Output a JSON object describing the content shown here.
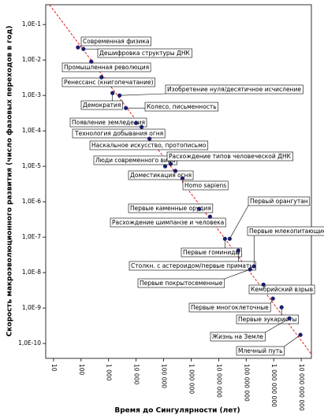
{
  "chart_data": {
    "type": "scatter",
    "y_label": "Скорость макроэволюционного развития (число фазовых переходов в год)",
    "x_label": "Время до Сингулярности (лет)",
    "x_scale": "log",
    "y_scale": "log",
    "color": "#1c1c6b",
    "x": [
      77,
      122,
      235,
      553,
      1390,
      2510,
      4250,
      10000,
      15800,
      30600,
      114000,
      181000,
      268000,
      485000,
      1930000,
      4850000,
      16900000,
      25100000,
      51800000,
      139000000,
      193000000,
      425000000,
      936000000,
      1930000000,
      3730000000,
      9360000000
    ],
    "values": [
      0.0227,
      0.0205,
      0.00903,
      0.00325,
      0.00117,
      0.001,
      0.00044,
      0.000167,
      0.000129,
      6e-05,
      1e-05,
      1.17e-05,
      7.4e-06,
      4.6e-06,
      6.3e-07,
      3.8e-07,
      9e-08,
      9e-08,
      4.2e-08,
      1.23e-08,
      1.5e-08,
      4.6e-09,
      1.85e-09,
      1.05e-09,
      5.1e-10,
      1.75e-10
    ],
    "labels": [
      "Современная физика",
      "Дешифровка структуры ДНК",
      "Промышленная революция",
      "Ренессанс (книгопечатание)",
      "Демократия",
      "Изобретение нуля/десятичное исчисление",
      "Колесо, письменность",
      "Появление земледелия",
      "Технология добывания огня",
      "Наскальное искусство, протописьмо",
      "Люди современного вида",
      "Расхождение типов человеческой ДНК",
      "Доместикация огня",
      "Homo sapiens",
      "Первые каменные орудия",
      "Расхождение шимпанзе и человека",
      "Первые гоминиды",
      "Первый орангутан",
      "Столкн. с астероидом/первые приматы",
      "Первые покрытосеменные",
      "Первые млекопитающие",
      "Кембрийский взрыв",
      "Первые многоклеточные",
      "Первые эукариоты",
      "Жизнь на Земле",
      "Млечный путь"
    ],
    "trendline": {
      "color": "#e31a1c",
      "x": [
        7.2,
        30600000000
      ],
      "y": [
        0.36,
        3.8e-11
      ]
    },
    "xlim": [
      5.2,
      23400000000
    ],
    "ylim": [
      3.8e-11,
      0.363
    ],
    "xticks": [
      10,
      100,
      {
        "value": 1000,
        "label": "1 000"
      },
      {
        "value": 10000,
        "label": "10 000"
      },
      {
        "value": 100000,
        "label": "100 000"
      },
      {
        "value": 1000000,
        "label": "1 000 000"
      },
      {
        "value": 10000000,
        "label": "10 000 000"
      },
      {
        "value": 100000000,
        "label": "100 000 000"
      },
      {
        "value": 1000000000,
        "label": "1 000 000 000"
      },
      {
        "value": 10000000000,
        "label": "10 000 000 000"
      }
    ],
    "yticks": [
      {
        "value": 0.1,
        "label": "1,0E-1"
      },
      {
        "value": 0.01,
        "label": "1,0E-2"
      },
      {
        "value": 0.001,
        "label": "1,0E-3"
      },
      {
        "value": 0.0001,
        "label": "1,0E-4"
      },
      {
        "value": 1e-05,
        "label": "1,0E-5"
      },
      {
        "value": 1e-06,
        "label": "1,0E-6"
      },
      {
        "value": 1e-07,
        "label": "1,0E-7"
      },
      {
        "value": 1e-08,
        "label": "1,0E-8"
      },
      {
        "value": 1e-09,
        "label": "1,0E-9"
      },
      {
        "value": 1e-10,
        "label": "1,0E-10"
      }
    ]
  }
}
